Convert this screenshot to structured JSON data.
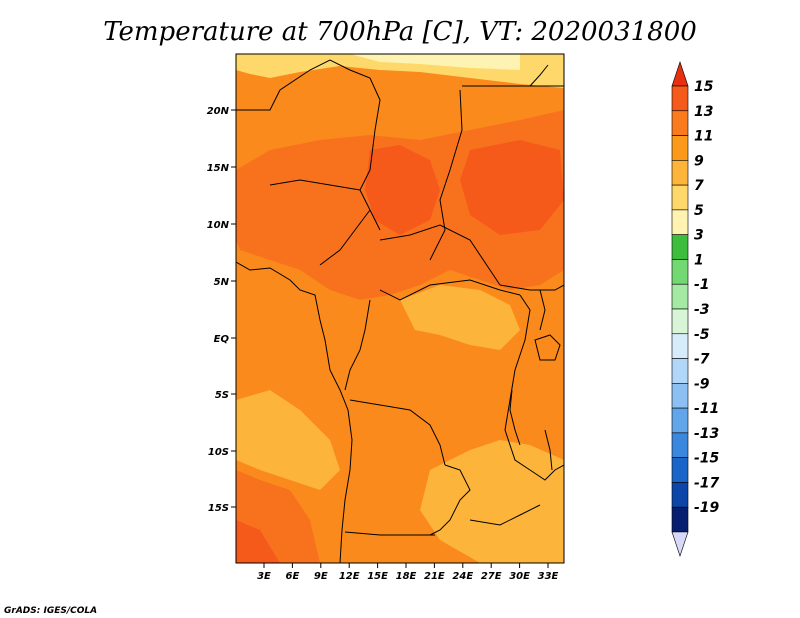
{
  "title": "Temperature at 700hPa [C], VT: 2020031800",
  "credit": "GrADS: IGES/COLA",
  "latitude_labels": [
    "20N",
    "15N",
    "10N",
    "5N",
    "EQ",
    "5S",
    "10S",
    "15S"
  ],
  "longitude_labels": [
    "3E",
    "6E",
    "9E",
    "12E",
    "15E",
    "18E",
    "21E",
    "24E",
    "27E",
    "30E",
    "33E"
  ],
  "colorbar": {
    "labels": [
      "15",
      "13",
      "11",
      "9",
      "7",
      "5",
      "3",
      "1",
      "-1",
      "-3",
      "-5",
      "-7",
      "-9",
      "-11",
      "-13",
      "-15",
      "-17",
      "-19"
    ],
    "colors": [
      "#e83010",
      "#f55a1a",
      "#fa7a1e",
      "#fb9a1a",
      "#fdb43a",
      "#fed86a",
      "#fef3b0",
      "#3cbe3c",
      "#72d872",
      "#a4eaa4",
      "#d8f5d8",
      "#d6ecfb",
      "#b0d6f8",
      "#8cc0f2",
      "#62a6ea",
      "#3a88de",
      "#1a66c8",
      "#0c46a8",
      "#081e6e",
      "#d8d8f8"
    ]
  },
  "map_colors": {
    "t7": "#fdb43a",
    "t8": "#fb9a1a",
    "t9": "#fa8a1c",
    "t10": "#f8721e",
    "t11": "#f55a1a",
    "t5": "#fed86a",
    "t3": "#fef3b0"
  }
}
